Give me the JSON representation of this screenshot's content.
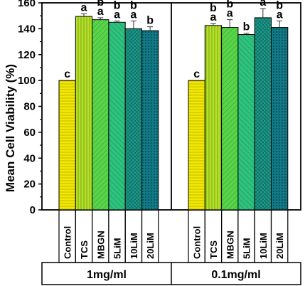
{
  "chart_data": {
    "type": "bar",
    "ylabel": "Mean Cell Viability (%)",
    "ylim": [
      0,
      160
    ],
    "yticks": [
      0,
      20,
      40,
      60,
      80,
      100,
      120,
      140,
      160
    ],
    "grid": false,
    "categories": [
      "Control",
      "TCS",
      "MBGN",
      "5LiM",
      "10LiM",
      "20LiM"
    ],
    "colors": [
      "#f2e800",
      "#b6e02a",
      "#59d44a",
      "#2ec27e",
      "#1d9a8a",
      "#117a86"
    ],
    "groups": [
      {
        "name": "1mg/ml",
        "values": [
          100,
          149.5,
          147,
          145,
          140,
          138.5
        ],
        "errors": [
          0,
          2,
          1.5,
          1,
          6,
          3
        ],
        "letters": [
          [
            "c"
          ],
          [
            "a"
          ],
          [
            "b",
            "a"
          ],
          [
            "b",
            "a"
          ],
          [
            "b",
            "a"
          ],
          [
            "b"
          ]
        ]
      },
      {
        "name": "0.1mg/ml",
        "values": [
          100,
          142.5,
          141,
          135.5,
          148.5,
          141
        ],
        "errors": [
          0,
          1.5,
          6,
          1,
          7,
          5
        ],
        "letters": [
          [
            "c"
          ],
          [
            "b",
            "a"
          ],
          [
            "b",
            "a"
          ],
          [
            "b"
          ],
          [
            "a"
          ],
          [
            "b",
            "a"
          ]
        ]
      }
    ]
  }
}
